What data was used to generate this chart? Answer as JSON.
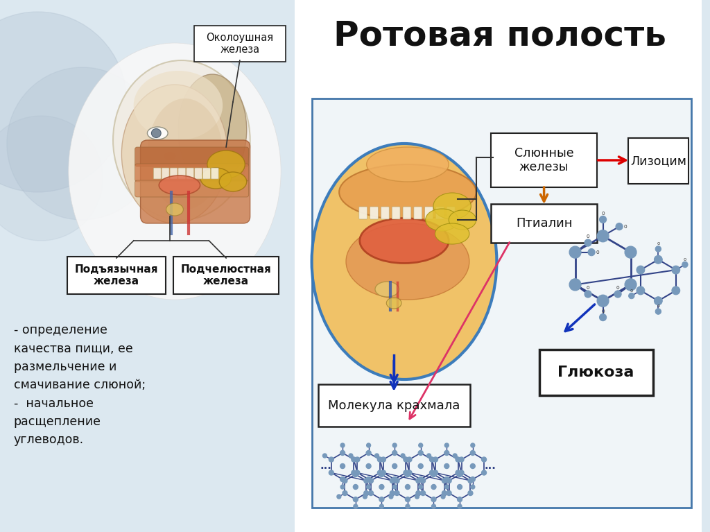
{
  "title": "Ротовая полость",
  "bg_color_left": "#dce8f0",
  "bg_color_right": "#ffffff",
  "title_fontsize": 36,
  "left_text": "- определение\nкачества пищи, ее\nразмельчение и\nсмачивание слюной;\n-  начальное\nрасщепление\nуглеводов.",
  "label_okoloushnaya": "Околоушная\nжелеза",
  "label_podyaz": "Подъязычная\nжелеза",
  "label_podchelyust": "Подчелюстная\nжелеза",
  "box_slyunnye": "Слюнные\nжелезы",
  "box_lizocim": "Лизоцим",
  "box_ptialin": "Птиалин",
  "box_molekula": "Молекула крахмала",
  "box_glyukoza": "Глюкоза",
  "box_border_color": "#222222",
  "arrow_red": "#dd0000",
  "arrow_blue": "#1133bb",
  "arrow_orange": "#cc6600",
  "arrow_pink": "#dd3366",
  "diagram_border": "#4477aa",
  "ellipse_border": "#3377bb",
  "ellipse_fill": "#f0c060",
  "circle_bg": "#aabbcc",
  "node_color": "#7799bb",
  "bond_color": "#334488"
}
